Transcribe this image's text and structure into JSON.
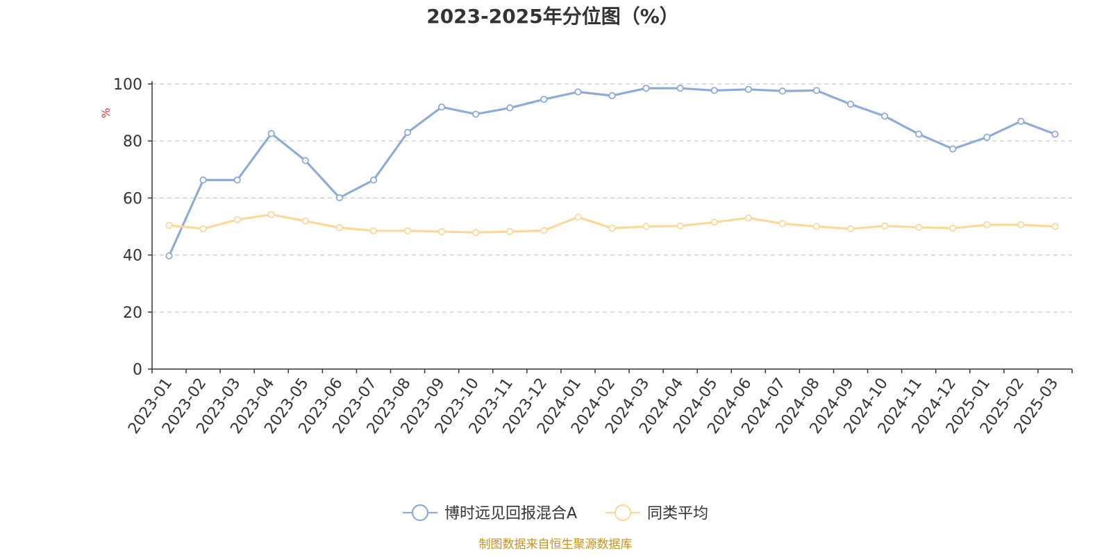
{
  "chart_data": {
    "type": "line",
    "title": "2023-2025年分位图（%）",
    "ylabel": "%",
    "xlabel": "",
    "ylim": [
      0,
      100
    ],
    "yticks": [
      0,
      20,
      40,
      60,
      80,
      100
    ],
    "grid": true,
    "legend_position": "bottom",
    "categories": [
      "2023-01",
      "2023-02",
      "2023-03",
      "2023-04",
      "2023-05",
      "2023-06",
      "2023-07",
      "2023-08",
      "2023-09",
      "2023-10",
      "2023-11",
      "2023-12",
      "2024-01",
      "2024-02",
      "2024-03",
      "2024-04",
      "2024-05",
      "2024-06",
      "2024-07",
      "2024-08",
      "2024-09",
      "2024-10",
      "2024-11",
      "2024-12",
      "2025-01",
      "2025-02",
      "2025-03"
    ],
    "series": [
      {
        "name": "博时远见回报混合A",
        "color": "#8eabd8",
        "values": [
          39.7,
          66.3,
          66.3,
          82.6,
          73.1,
          60.1,
          66.3,
          83.0,
          91.9,
          89.4,
          91.6,
          94.6,
          97.2,
          95.9,
          98.5,
          98.5,
          97.7,
          98.1,
          97.5,
          97.7,
          92.9,
          88.7,
          82.4,
          77.2,
          81.3,
          86.9,
          82.4
        ]
      },
      {
        "name": "同类平均",
        "color": "#fdd999",
        "values": [
          50.4,
          49.2,
          52.4,
          54.2,
          51.9,
          49.6,
          48.5,
          48.5,
          48.2,
          47.9,
          48.2,
          48.6,
          53.3,
          49.4,
          50.0,
          50.2,
          51.5,
          53.0,
          51.0,
          50.0,
          49.2,
          50.2,
          49.7,
          49.4,
          50.6,
          50.6,
          50.0
        ]
      }
    ],
    "source_note": "制图数据来自恒生聚源数据库",
    "source_color": "#c8921f"
  }
}
